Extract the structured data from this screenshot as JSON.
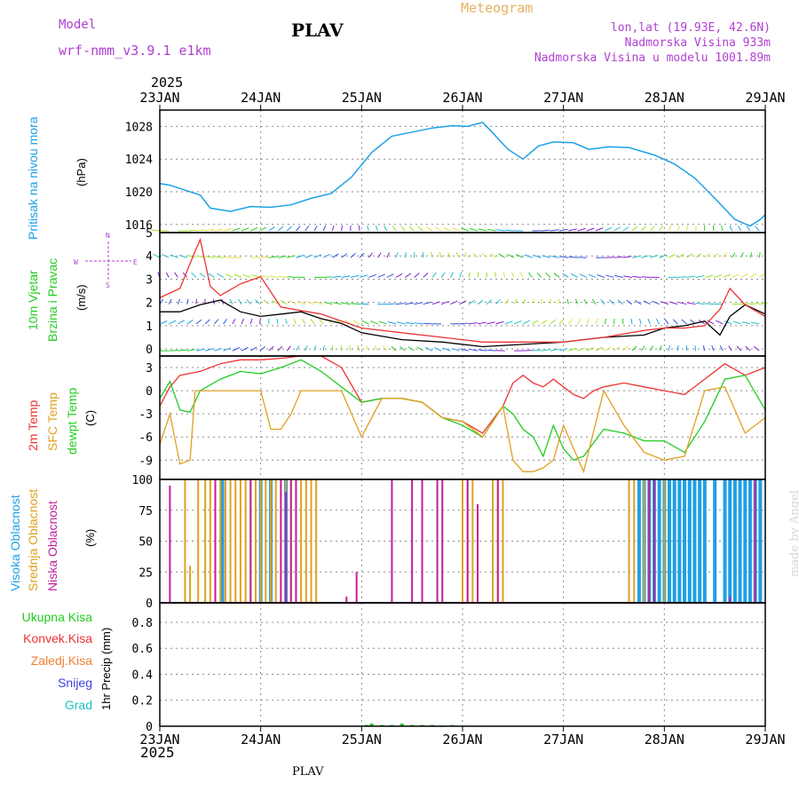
{
  "header": {
    "model_label": "Model",
    "model_name": "wrf-nmm_v3.9.1 e1km",
    "station": "PLAV",
    "product": "Meteogram",
    "lonlat": "lon,lat (19.93E, 42.6N)",
    "elevation": "Nadmorska Visina 933m",
    "model_elevation": "Nadmorska Visina u modelu 1001.89m",
    "year_top": "2025",
    "year_bottom": "2025",
    "footer_station": "PLAV",
    "credit": "made by Angel"
  },
  "colors": {
    "pressure": "#1ea0e6",
    "temp": "#ee3333",
    "sfc": "#e0a020",
    "dewpt": "#22cc22",
    "high_cloud": "#1ea0e6",
    "mid_cloud": "#e0a020",
    "low_cloud": "#c0209a",
    "model": "#b040d0",
    "product": "#e8b060"
  },
  "panels": {
    "pressure": {
      "label": "Pritisak na nivou mora",
      "unit": "(hPa)",
      "ticks": [
        "1016",
        "1020",
        "1024",
        "1028"
      ]
    },
    "wind": {
      "label1": "10m Vjetar",
      "label2": "Brzina i Pravac",
      "unit": "(m/s)",
      "ticks": [
        "0",
        "1",
        "2",
        "3",
        "4",
        "5"
      ],
      "compass_w": "W",
      "compass_e": "E",
      "compass_ns": "N",
      "compass_ss": "S"
    },
    "temp": {
      "label_temp": "2m Temp",
      "label_sfc": "SFC Temp",
      "label_dew": "dewpt Temp",
      "unit": "(C)",
      "ticks": [
        "-9",
        "-6",
        "-3",
        "0",
        "3"
      ]
    },
    "cloud": {
      "label_high": "Visoka Oblacnost",
      "label_mid": "Srednja Oblacnost",
      "label_low": "Niska Oblacnost",
      "unit": "(%)",
      "ticks": [
        "0",
        "25",
        "50",
        "75",
        "100"
      ]
    },
    "precip": {
      "label_total": "Ukupna Kisa",
      "label_conv": "Konvek.Kisa",
      "label_frz": "Zaledj.Kisa",
      "label_snow": "Snijeg",
      "label_grad": "Grad",
      "unit": "1hr Precip (mm)",
      "ticks": [
        "0",
        "0.2",
        "0.4",
        "0.6",
        "0.8"
      ]
    }
  },
  "x_dates": [
    "23JAN",
    "24JAN",
    "25JAN",
    "26JAN",
    "27JAN",
    "28JAN",
    "29JAN"
  ],
  "chart_data": [
    {
      "type": "line",
      "ylabel": "Pritisak na nivou mora (hPa)",
      "ylim": [
        1015,
        1030
      ],
      "x_day": [
        0,
        0.1,
        0.25,
        0.4,
        0.5,
        0.7,
        0.9,
        1.1,
        1.3,
        1.5,
        1.7,
        1.9,
        2.1,
        2.3,
        2.5,
        2.7,
        2.9,
        3.05,
        3.2,
        3.3,
        3.45,
        3.6,
        3.75,
        3.9,
        4.1,
        4.25,
        4.45,
        4.65,
        4.9,
        5.1,
        5.3,
        5.5,
        5.7,
        5.85,
        5.95,
        6.0
      ],
      "values": [
        1021,
        1020.8,
        1020.2,
        1019.6,
        1018,
        1017.6,
        1018.2,
        1018.1,
        1018.4,
        1019.2,
        1019.8,
        1021.8,
        1024.8,
        1026.8,
        1027.3,
        1027.8,
        1028.1,
        1028.0,
        1028.5,
        1027.2,
        1025.2,
        1024.0,
        1025.6,
        1026.1,
        1026.0,
        1025.2,
        1025.5,
        1025.4,
        1024.5,
        1023.4,
        1021.7,
        1019.2,
        1016.6,
        1015.8,
        1016.6,
        1017.2
      ]
    },
    {
      "type": "line",
      "ylabel": "10m Vjetar Brzina i Pravac (m/s)",
      "ylim": [
        -0.3,
        5
      ],
      "series": [
        {
          "name": "",
          "x_day": [
            0,
            0.2,
            0.4,
            0.6,
            0.8,
            1.0,
            1.2,
            1.4,
            1.6,
            1.8,
            2.0,
            2.4,
            2.8,
            3.2,
            3.6,
            4.0,
            4.4,
            4.8,
            5.0,
            5.2,
            5.4,
            5.55,
            5.65,
            5.8,
            6.0
          ],
          "values": [
            1.6,
            1.6,
            1.9,
            2.1,
            1.6,
            1.4,
            1.5,
            1.6,
            1.3,
            1.1,
            0.7,
            0.4,
            0.3,
            0.1,
            0.2,
            0.3,
            0.5,
            0.6,
            0.9,
            1.0,
            1.2,
            0.6,
            1.4,
            1.9,
            1.5
          ]
        },
        {
          "name": "",
          "x_day": [
            0,
            0.2,
            0.35,
            0.4,
            0.5,
            0.6,
            0.8,
            1.0,
            1.2,
            1.6,
            2.0,
            2.4,
            2.8,
            3.2,
            3.6,
            4.0,
            4.4,
            4.8,
            5.0,
            5.2,
            5.4,
            5.55,
            5.65,
            5.8,
            6.0
          ],
          "values": [
            2.2,
            2.6,
            4.2,
            4.7,
            2.7,
            2.3,
            2.8,
            3.1,
            1.8,
            1.5,
            0.9,
            0.7,
            0.5,
            0.3,
            0.3,
            0.3,
            0.5,
            0.8,
            0.9,
            0.9,
            1.0,
            1.7,
            2.6,
            1.9,
            1.4
          ]
        }
      ]
    },
    {
      "type": "line",
      "ylabel": "(C)",
      "ylim": [
        -11.5,
        4.5
      ],
      "series": [
        {
          "name": "2m Temp",
          "x_day": [
            0,
            0.1,
            0.2,
            0.4,
            0.6,
            0.8,
            1.0,
            1.2,
            1.4,
            1.6,
            1.8,
            2.0,
            2.2,
            2.4,
            2.6,
            2.8,
            3.0,
            3.2,
            3.4,
            3.5,
            3.6,
            3.7,
            3.8,
            3.9,
            4.0,
            4.1,
            4.2,
            4.3,
            4.4,
            4.6,
            4.8,
            5.0,
            5.2,
            5.4,
            5.6,
            5.8,
            6.0
          ],
          "values": [
            -2,
            0.5,
            2,
            2.5,
            3.5,
            4.0,
            4.0,
            4.2,
            5.0,
            6.0,
            3.0,
            -1.5,
            -1,
            -1,
            -1.5,
            -3.5,
            -4.0,
            -5.5,
            -2.0,
            1.0,
            2.0,
            1.0,
            0.5,
            1.5,
            0.5,
            -0.5,
            -1.0,
            0.0,
            0.5,
            1.0,
            0.5,
            0.0,
            -0.5,
            1.5,
            3.5,
            2.0,
            3.0
          ]
        },
        {
          "name": "dewpt Temp",
          "x_day": [
            0,
            0.1,
            0.2,
            0.3,
            0.4,
            0.6,
            0.8,
            1.0,
            1.2,
            1.4,
            1.6,
            1.8,
            2.0,
            2.2,
            2.4,
            2.6,
            2.8,
            3.0,
            3.2,
            3.4,
            3.5,
            3.6,
            3.7,
            3.8,
            3.9,
            4.0,
            4.1,
            4.2,
            4.4,
            4.6,
            4.8,
            5.0,
            5.2,
            5.4,
            5.6,
            5.8,
            6.0
          ],
          "values": [
            -1,
            1.2,
            -2.5,
            -2.8,
            0,
            1.5,
            2.5,
            2.2,
            3.0,
            4.0,
            2.5,
            0.5,
            -1.5,
            -1.0,
            -1.0,
            -1.5,
            -3.5,
            -4.5,
            -6.0,
            -2.0,
            -3.0,
            -5.0,
            -6.0,
            -8.5,
            -4.5,
            -7.5,
            -9.0,
            -8.5,
            -5.0,
            -5.5,
            -6.5,
            -6.5,
            -8.0,
            -4.0,
            1.5,
            2.0,
            -2.5
          ]
        },
        {
          "name": "SFC Temp",
          "x_day": [
            0,
            0.1,
            0.2,
            0.3,
            0.35,
            0.4,
            0.6,
            0.8,
            1.0,
            1.1,
            1.2,
            1.3,
            1.4,
            1.6,
            1.8,
            2.0,
            2.2,
            2.4,
            2.6,
            2.8,
            3.0,
            3.2,
            3.4,
            3.5,
            3.6,
            3.7,
            3.8,
            3.9,
            4.0,
            4.2,
            4.4,
            4.6,
            4.8,
            5.0,
            5.2,
            5.4,
            5.6,
            5.8,
            6.0
          ],
          "values": [
            -7,
            -3,
            -9.5,
            -9,
            0,
            0,
            0,
            0,
            0,
            -5,
            -5,
            -3,
            0,
            0,
            0,
            -6,
            -1,
            -1,
            -1.5,
            -3.5,
            -4.0,
            -6.0,
            -2.0,
            -9.0,
            -10.5,
            -10.5,
            -10.0,
            -9.0,
            -4.5,
            -10.5,
            0.0,
            -4.5,
            -8.0,
            -9.0,
            -8.5,
            0.0,
            0.5,
            -5.5,
            -3.5
          ]
        }
      ]
    },
    {
      "type": "bar",
      "ylabel": "(%)",
      "ylim": [
        0,
        100
      ],
      "series": [
        {
          "name": "Visoka Oblacnost",
          "x_day": [
            0.62,
            1.0,
            1.1,
            1.25,
            4.75,
            4.8,
            4.85,
            4.9,
            4.95,
            5.0,
            5.05,
            5.1,
            5.15,
            5.2,
            5.25,
            5.3,
            5.35,
            5.4,
            5.5,
            5.6,
            5.65,
            5.7,
            5.75,
            5.8,
            5.85,
            5.9,
            5.95
          ],
          "values": [
            100,
            100,
            100,
            100,
            100,
            100,
            100,
            100,
            100,
            100,
            100,
            100,
            100,
            100,
            100,
            100,
            100,
            100,
            100,
            100,
            100,
            100,
            100,
            100,
            100,
            100,
            100
          ]
        },
        {
          "name": "Srednja Oblacnost",
          "x_day": [
            0.25,
            0.3,
            0.38,
            0.45,
            0.5,
            0.55,
            0.6,
            0.65,
            0.7,
            0.75,
            0.8,
            0.85,
            0.9,
            0.95,
            1.0,
            1.05,
            1.1,
            1.15,
            1.2,
            1.25,
            1.3,
            1.35,
            1.4,
            1.45,
            1.5,
            1.55,
            3.0,
            3.05,
            3.1,
            3.3,
            3.35,
            3.4,
            4.65,
            4.7,
            4.8,
            4.9,
            5.0
          ],
          "values": [
            100,
            30,
            100,
            100,
            100,
            100,
            100,
            100,
            100,
            100,
            100,
            100,
            100,
            100,
            100,
            100,
            100,
            100,
            100,
            100,
            100,
            100,
            100,
            100,
            100,
            100,
            100,
            100,
            100,
            100,
            100,
            100,
            100,
            100,
            100,
            100,
            100
          ]
        },
        {
          "name": "Niska Oblacnost",
          "x_day": [
            0.1,
            0.55,
            0.9,
            1.2,
            1.25,
            1.3,
            1.35,
            1.85,
            1.95,
            2.3,
            2.5,
            2.6,
            2.75,
            2.8,
            3.05,
            3.15,
            3.35,
            4.85,
            4.9,
            5.65,
            5.9
          ],
          "values": [
            95,
            100,
            100,
            100,
            90,
            100,
            100,
            5,
            25,
            100,
            100,
            100,
            100,
            100,
            100,
            80,
            100,
            100,
            100,
            5,
            100
          ]
        }
      ]
    },
    {
      "type": "bar",
      "ylabel": "1hr Precip (mm)",
      "ylim": [
        0,
        0.95
      ],
      "series": [
        {
          "name": "Ukupna Kisa",
          "x_day": [
            2.05,
            2.1,
            2.2,
            2.3,
            2.4,
            2.5,
            2.6,
            2.7,
            2.8,
            2.9
          ],
          "values": [
            0.01,
            0.02,
            0.01,
            0.01,
            0.02,
            0.01,
            0.01,
            0.01,
            0.0,
            0.01
          ]
        }
      ]
    }
  ]
}
